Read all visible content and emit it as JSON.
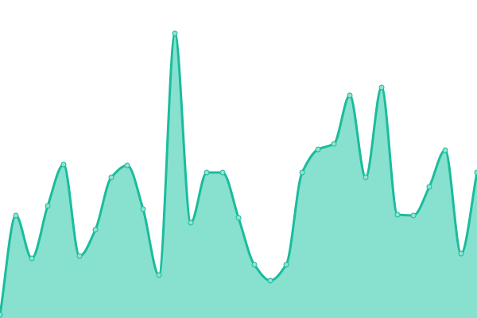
{
  "chart_data": {
    "type": "area",
    "title": "",
    "xlabel": "",
    "ylabel": "",
    "x": [
      0,
      1,
      2,
      3,
      4,
      5,
      6,
      7,
      8,
      9,
      10,
      11,
      12,
      13,
      14,
      15,
      16,
      17,
      18,
      19,
      20,
      21,
      22,
      23,
      24,
      25,
      26,
      27,
      28,
      29,
      30
    ],
    "series": [
      {
        "values": [
          4,
          129,
          75,
          141,
          193,
          78,
          111,
          177,
          192,
          137,
          54,
          358,
          120,
          183,
          183,
          126,
          67,
          47,
          67,
          183,
          212,
          219,
          280,
          177,
          290,
          130,
          129,
          165,
          211,
          81,
          183
        ]
      }
    ],
    "xlim": [
      0,
      30
    ],
    "ylim": [
      0,
      400
    ],
    "grid": false,
    "axes_visible": false,
    "colors": {
      "line": "#1abc9c",
      "fill": "#88e0cf",
      "marker_fill": "#8fe3d0",
      "marker_stroke": "#1abc9c"
    }
  }
}
